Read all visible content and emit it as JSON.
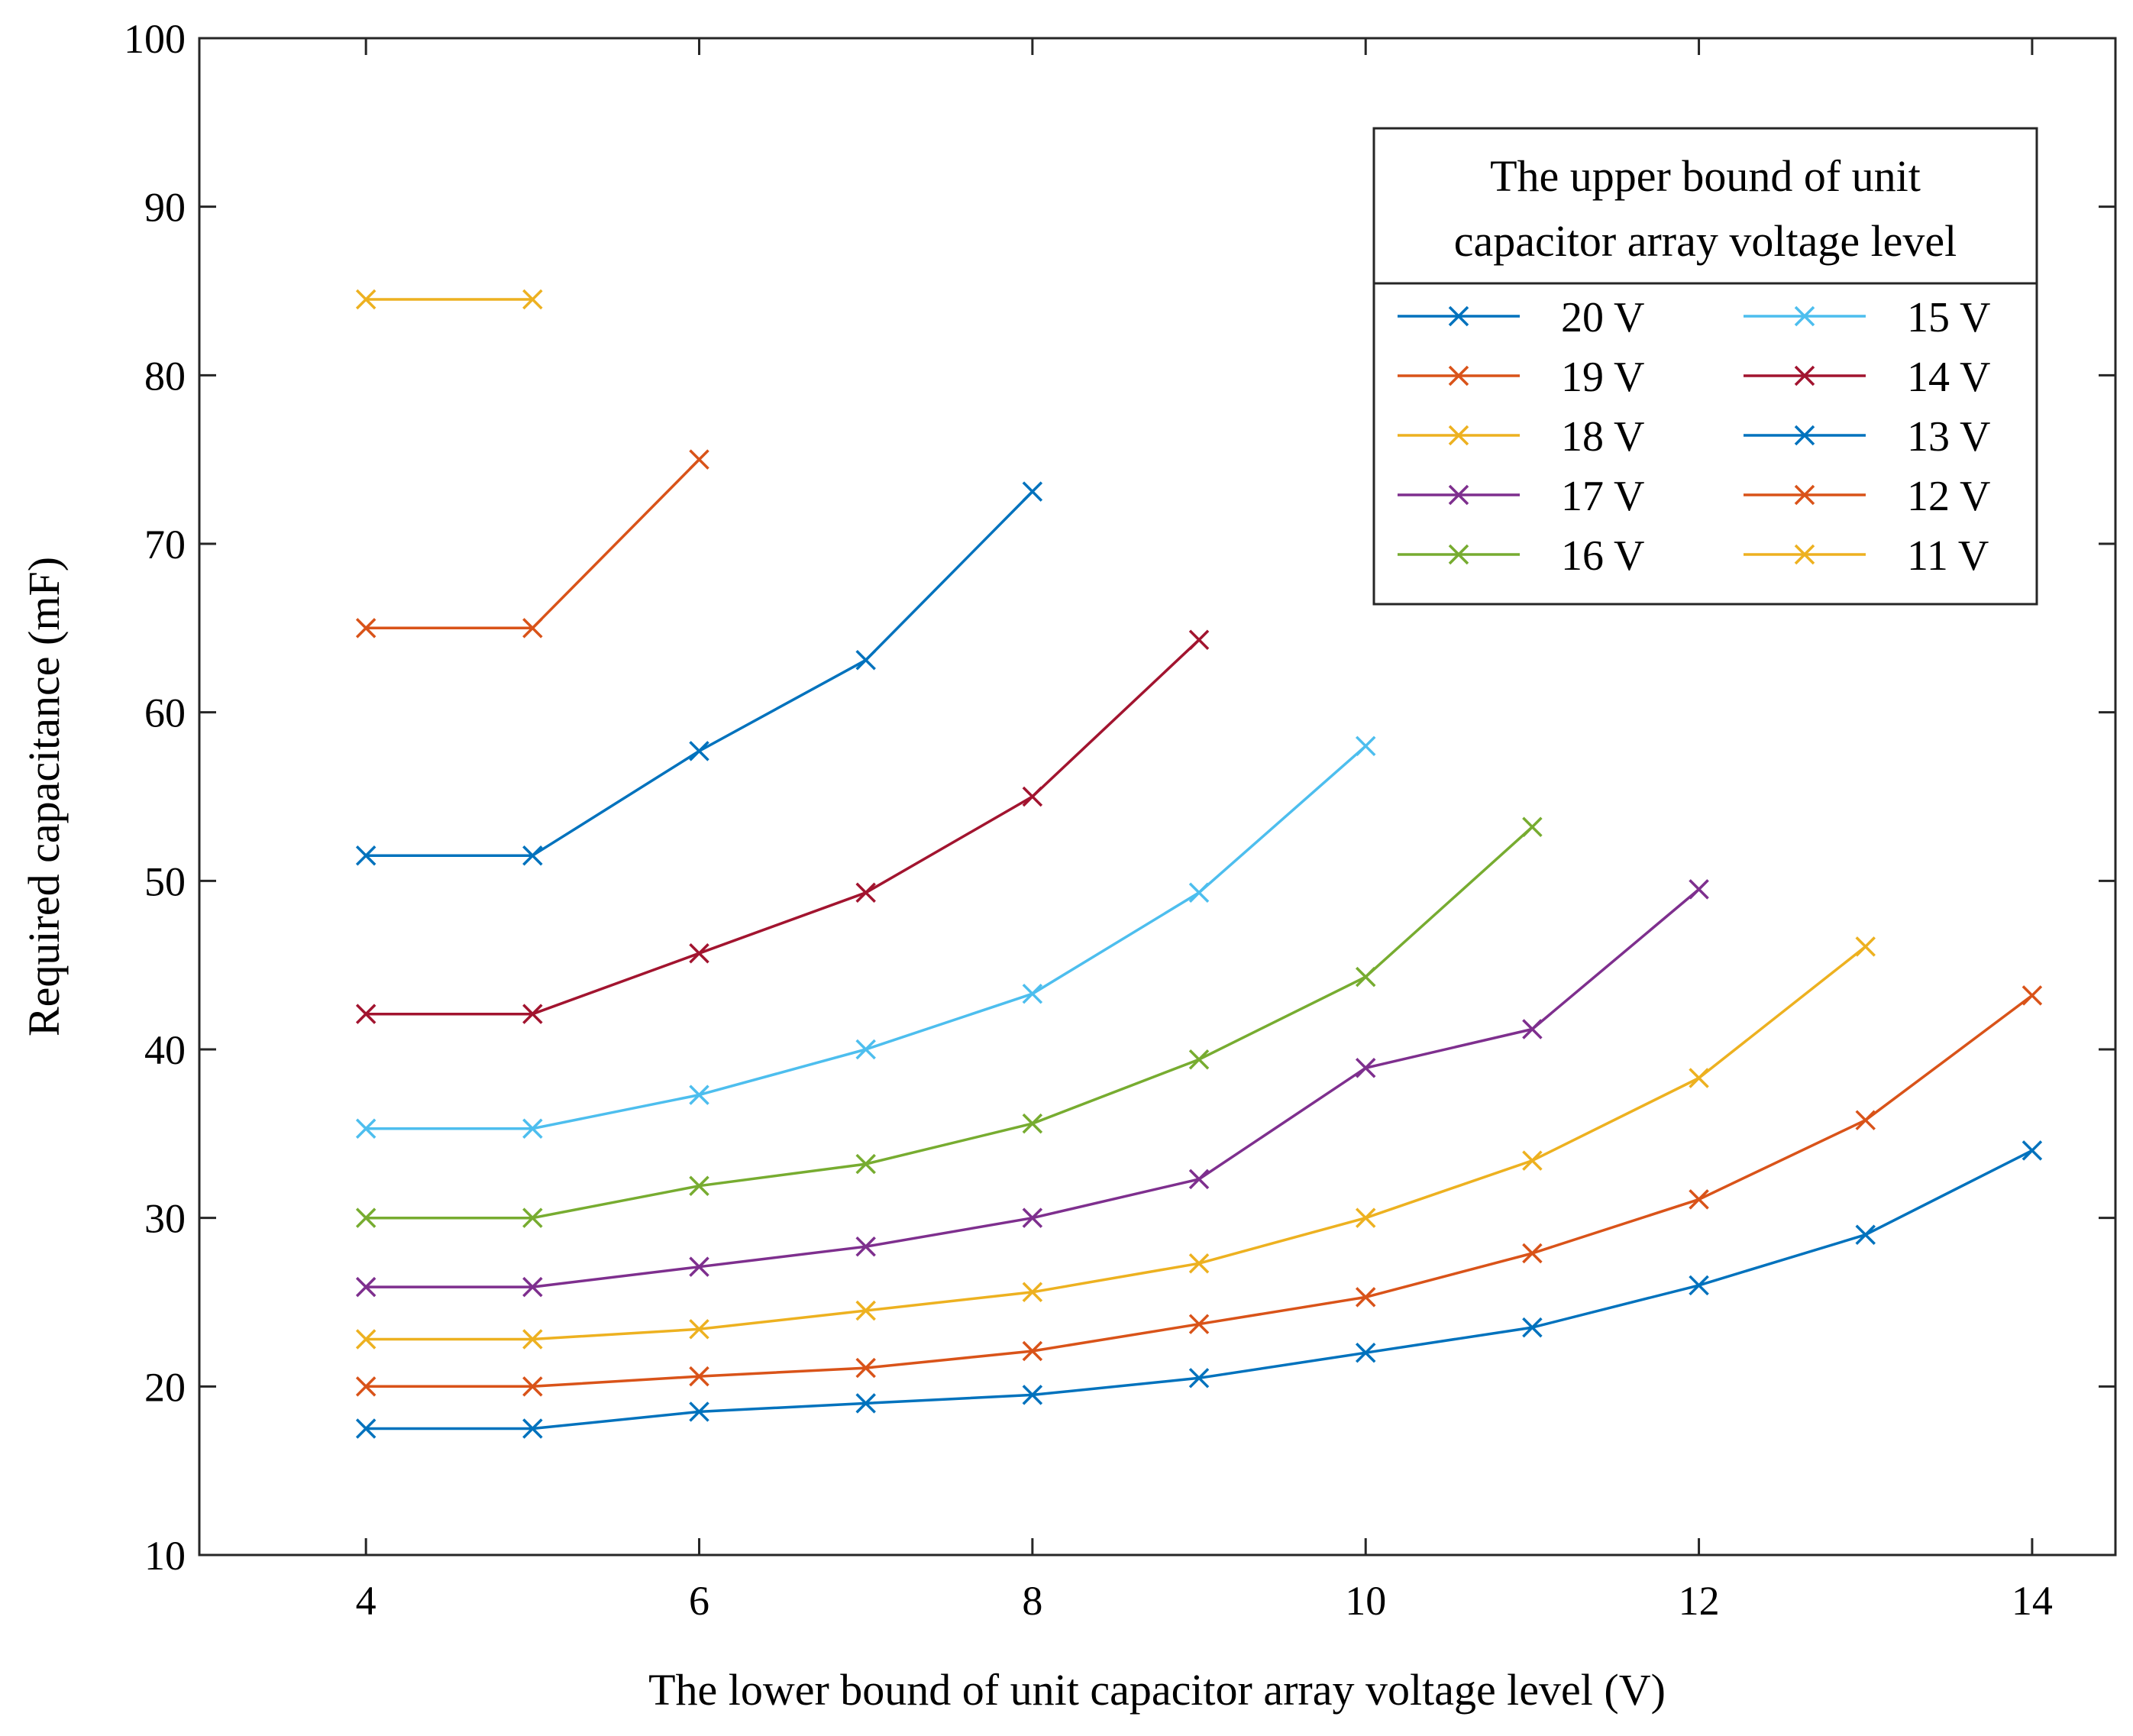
{
  "chart_data": {
    "type": "line",
    "title": "",
    "xlabel": "The lower bound of unit capacitor array voltage level (V)",
    "ylabel": "Required capacitance (mF)",
    "xlim": [
      3,
      14.5
    ],
    "ylim": [
      10,
      100
    ],
    "xticks": [
      4,
      6,
      8,
      10,
      12,
      14
    ],
    "yticks": [
      10,
      20,
      30,
      40,
      50,
      60,
      70,
      80,
      90,
      100
    ],
    "marker": "x",
    "grid": false,
    "legend": {
      "title_lines": [
        "The upper bound of unit",
        "capacitor array voltage level"
      ],
      "position": "top-right",
      "columns": 2
    },
    "series": [
      {
        "name": "20 V",
        "color": "#0072BD",
        "x": [
          4,
          5,
          6,
          7,
          8,
          9,
          10,
          11,
          12,
          13,
          14
        ],
        "values": [
          17.5,
          17.5,
          18.5,
          19.0,
          19.5,
          20.5,
          22.0,
          23.5,
          26.0,
          29.0,
          34.0
        ]
      },
      {
        "name": "19 V",
        "color": "#D95319",
        "x": [
          4,
          5,
          6,
          7,
          8,
          9,
          10,
          11,
          12,
          13,
          14
        ],
        "values": [
          20.0,
          20.0,
          20.6,
          21.1,
          22.1,
          23.7,
          25.3,
          27.9,
          31.1,
          35.8,
          43.2
        ]
      },
      {
        "name": "18 V",
        "color": "#EDB120",
        "x": [
          4,
          5,
          6,
          7,
          8,
          9,
          10,
          11,
          12,
          13
        ],
        "values": [
          22.8,
          22.8,
          23.4,
          24.5,
          25.6,
          27.3,
          30.0,
          33.4,
          38.3,
          46.1
        ]
      },
      {
        "name": "17 V",
        "color": "#7E2F8E",
        "x": [
          4,
          5,
          6,
          7,
          8,
          9,
          10,
          11,
          12
        ],
        "values": [
          25.9,
          25.9,
          27.1,
          28.3,
          30.0,
          32.3,
          38.9,
          41.2,
          49.5
        ]
      },
      {
        "name": "16 V",
        "color": "#77AC30",
        "x": [
          4,
          5,
          6,
          7,
          8,
          9,
          10,
          11
        ],
        "values": [
          30.0,
          30.0,
          31.9,
          33.2,
          35.6,
          39.4,
          44.3,
          53.2
        ]
      },
      {
        "name": "15 V",
        "color": "#4DBEEE",
        "x": [
          4,
          5,
          6,
          7,
          8,
          9,
          10
        ],
        "values": [
          35.3,
          35.3,
          37.3,
          40.0,
          43.3,
          49.3,
          58.0
        ]
      },
      {
        "name": "14 V",
        "color": "#A2142F",
        "x": [
          4,
          5,
          6,
          7,
          8,
          9
        ],
        "values": [
          42.1,
          42.1,
          45.7,
          49.3,
          55.0,
          64.3
        ]
      },
      {
        "name": "13 V",
        "color": "#0072BD",
        "x": [
          4,
          5,
          6,
          7,
          8
        ],
        "values": [
          51.5,
          51.5,
          57.7,
          63.1,
          73.1
        ]
      },
      {
        "name": "12 V",
        "color": "#D95319",
        "x": [
          4,
          5,
          6
        ],
        "values": [
          65.0,
          65.0,
          75.0
        ]
      },
      {
        "name": "11 V",
        "color": "#EDB120",
        "x": [
          4,
          5
        ],
        "values": [
          84.5,
          84.5
        ]
      }
    ]
  }
}
